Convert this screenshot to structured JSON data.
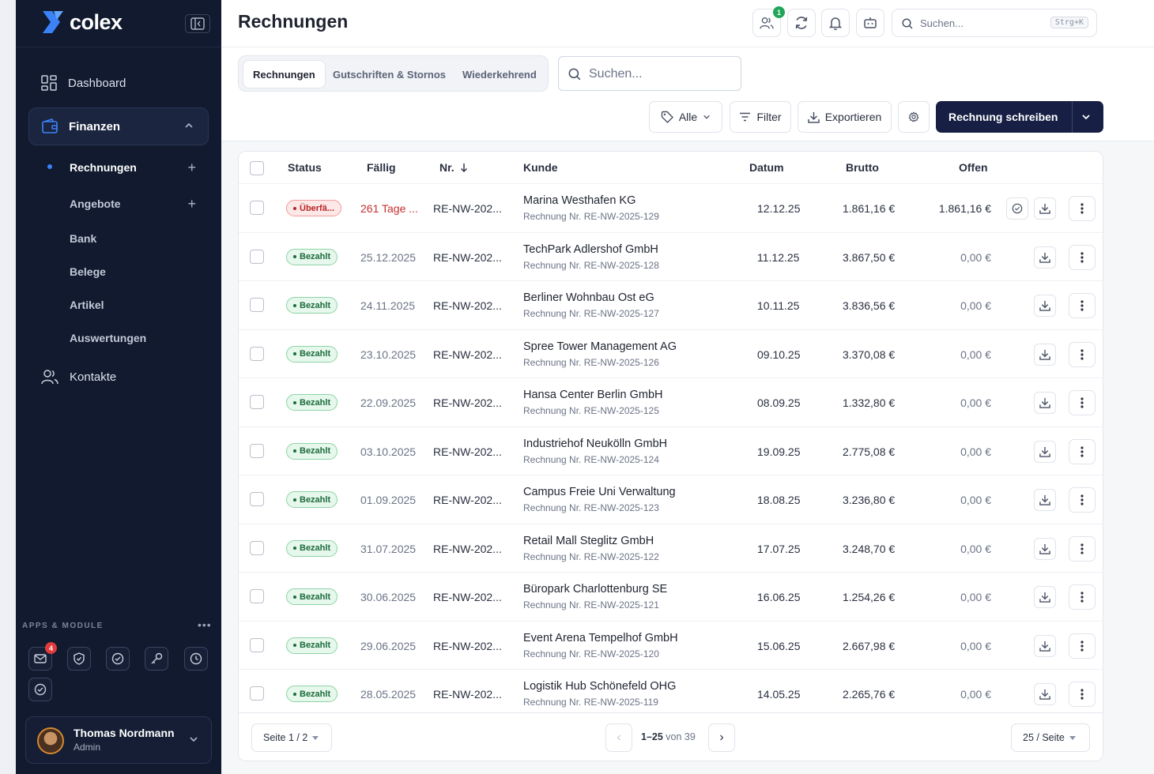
{
  "app": {
    "name": "colex",
    "page_title": "Rechnungen"
  },
  "sidebar": {
    "nav": [
      {
        "label": "Dashboard"
      },
      {
        "label": "Finanzen"
      },
      {
        "label": "Kontakte"
      }
    ],
    "finance_sub": [
      {
        "label": "Rechnungen"
      },
      {
        "label": "Angebote"
      },
      {
        "label": "Bank"
      },
      {
        "label": "Belege"
      },
      {
        "label": "Artikel"
      },
      {
        "label": "Auswertungen"
      }
    ],
    "apps_label": "APPS & MODULE",
    "mail_badge": "4",
    "user": {
      "name": "Thomas Nordmann",
      "role": "Admin"
    }
  },
  "topbar": {
    "team_badge": "1",
    "search_placeholder": "Suchen...",
    "search_shortcut": "Strg+K"
  },
  "toolbar": {
    "tabs": [
      "Rechnungen",
      "Gutschriften & Stornos",
      "Wiederkehrend"
    ],
    "search_placeholder": "Suchen...",
    "tag_filter": "Alle",
    "filter_label": "Filter",
    "export_label": "Exportieren",
    "primary_label": "Rechnung schreiben"
  },
  "table": {
    "columns": {
      "status": "Status",
      "due": "Fällig",
      "number": "Nr.",
      "customer": "Kunde",
      "date": "Datum",
      "gross": "Brutto",
      "open": "Offen"
    },
    "rows": [
      {
        "status": "Überfä...",
        "status_type": "overdue",
        "due": "261 Tage ...",
        "number": "RE-NW-202...",
        "customer": "Marina Westhafen KG",
        "invoice_ref": "Rechnung Nr. RE-NW-2025-129",
        "date": "12.12.25",
        "gross": "1.861,16 €",
        "open": "1.861,16 €"
      },
      {
        "status": "Bezahlt",
        "status_type": "paid",
        "due": "25.12.2025",
        "number": "RE-NW-202...",
        "customer": "TechPark Adlershof GmbH",
        "invoice_ref": "Rechnung Nr. RE-NW-2025-128",
        "date": "11.12.25",
        "gross": "3.867,50 €",
        "open": "0,00 €"
      },
      {
        "status": "Bezahlt",
        "status_type": "paid",
        "due": "24.11.2025",
        "number": "RE-NW-202...",
        "customer": "Berliner Wohnbau Ost eG",
        "invoice_ref": "Rechnung Nr. RE-NW-2025-127",
        "date": "10.11.25",
        "gross": "3.836,56 €",
        "open": "0,00 €"
      },
      {
        "status": "Bezahlt",
        "status_type": "paid",
        "due": "23.10.2025",
        "number": "RE-NW-202...",
        "customer": "Spree Tower Management AG",
        "invoice_ref": "Rechnung Nr. RE-NW-2025-126",
        "date": "09.10.25",
        "gross": "3.370,08 €",
        "open": "0,00 €"
      },
      {
        "status": "Bezahlt",
        "status_type": "paid",
        "due": "22.09.2025",
        "number": "RE-NW-202...",
        "customer": "Hansa Center Berlin GmbH",
        "invoice_ref": "Rechnung Nr. RE-NW-2025-125",
        "date": "08.09.25",
        "gross": "1.332,80 €",
        "open": "0,00 €"
      },
      {
        "status": "Bezahlt",
        "status_type": "paid",
        "due": "03.10.2025",
        "number": "RE-NW-202...",
        "customer": "Industriehof Neukölln GmbH",
        "invoice_ref": "Rechnung Nr. RE-NW-2025-124",
        "date": "19.09.25",
        "gross": "2.775,08 €",
        "open": "0,00 €"
      },
      {
        "status": "Bezahlt",
        "status_type": "paid",
        "due": "01.09.2025",
        "number": "RE-NW-202...",
        "customer": "Campus Freie Uni Verwaltung",
        "invoice_ref": "Rechnung Nr. RE-NW-2025-123",
        "date": "18.08.25",
        "gross": "3.236,80 €",
        "open": "0,00 €"
      },
      {
        "status": "Bezahlt",
        "status_type": "paid",
        "due": "31.07.2025",
        "number": "RE-NW-202...",
        "customer": "Retail Mall Steglitz GmbH",
        "invoice_ref": "Rechnung Nr. RE-NW-2025-122",
        "date": "17.07.25",
        "gross": "3.248,70 €",
        "open": "0,00 €"
      },
      {
        "status": "Bezahlt",
        "status_type": "paid",
        "due": "30.06.2025",
        "number": "RE-NW-202...",
        "customer": "Büropark Charlottenburg SE",
        "invoice_ref": "Rechnung Nr. RE-NW-2025-121",
        "date": "16.06.25",
        "gross": "1.254,26 €",
        "open": "0,00 €"
      },
      {
        "status": "Bezahlt",
        "status_type": "paid",
        "due": "29.06.2025",
        "number": "RE-NW-202...",
        "customer": "Event Arena Tempelhof GmbH",
        "invoice_ref": "Rechnung Nr. RE-NW-2025-120",
        "date": "15.06.25",
        "gross": "2.667,98 €",
        "open": "0,00 €"
      },
      {
        "status": "Bezahlt",
        "status_type": "paid",
        "due": "28.05.2025",
        "number": "RE-NW-202...",
        "customer": "Logistik Hub Schönefeld OHG",
        "invoice_ref": "Rechnung Nr. RE-NW-2025-119",
        "date": "14.05.25",
        "gross": "2.265,76 €",
        "open": "0,00 €"
      }
    ]
  },
  "footer": {
    "page_select": "Seite 1 / 2",
    "range": "1–25",
    "of_text": "von 39",
    "page_size": "25 / Seite"
  },
  "colors": {
    "sidebar_bg": "#111a2e",
    "primary": "#172044",
    "paid": "#1c6b3c",
    "overdue": "#c62f2f",
    "logo_blue": "#3b82f6"
  }
}
